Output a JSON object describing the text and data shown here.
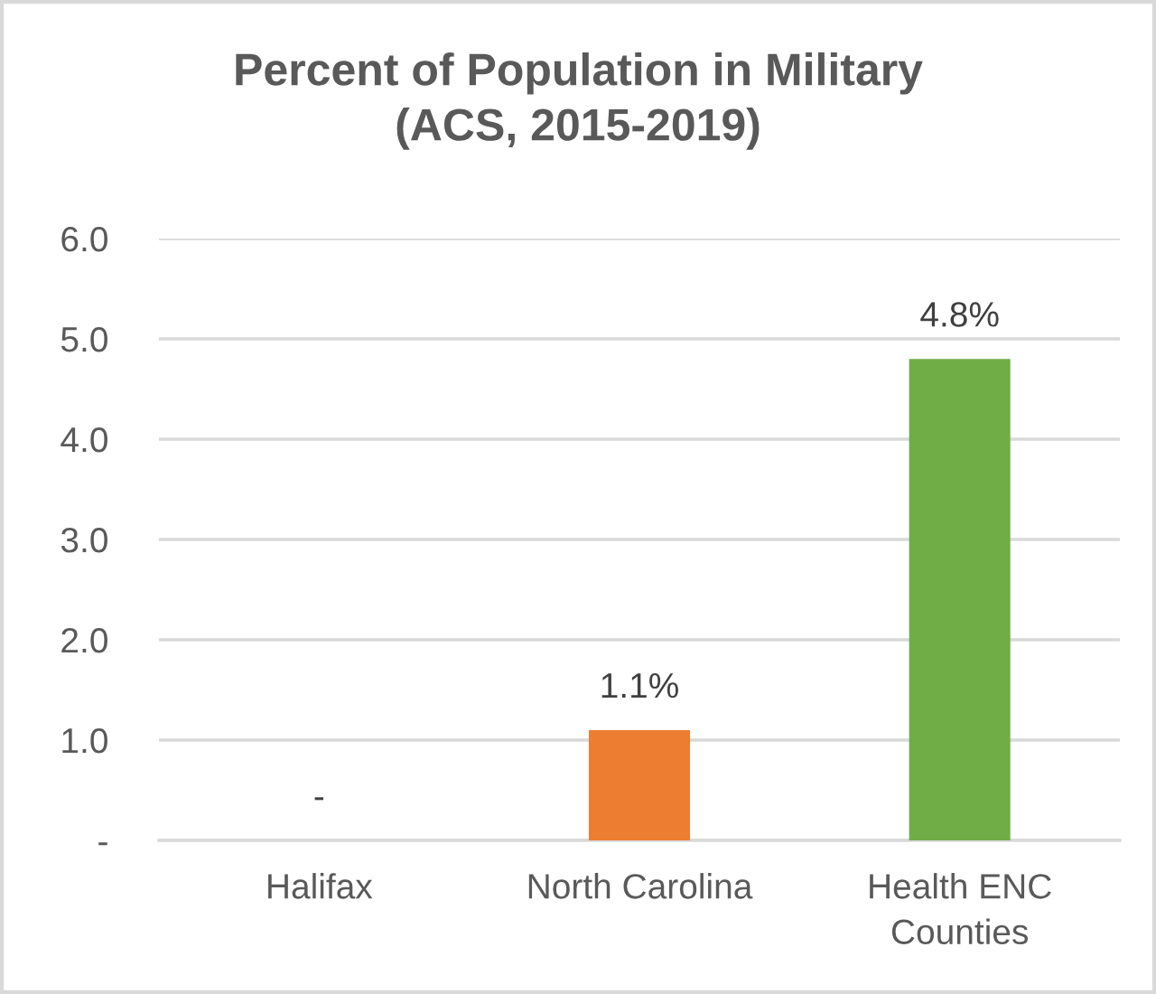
{
  "chart_data": {
    "type": "bar",
    "title": "Percent of Population in Military\n(ACS, 2015-2019)",
    "categories": [
      "Halifax",
      "North Carolina",
      "Health ENC\nCounties"
    ],
    "values": [
      0,
      1.1,
      4.8
    ],
    "colors": [
      "#4472c4",
      "#ed7d31",
      "#70ad47"
    ],
    "value_labels": [
      "-",
      "1.1%",
      "4.8%"
    ],
    "ylim": [
      0,
      6
    ],
    "yticks": [
      {
        "value": 0,
        "label": "-"
      },
      {
        "value": 1,
        "label": "1.0"
      },
      {
        "value": 2,
        "label": "2.0"
      },
      {
        "value": 3,
        "label": "3.0"
      },
      {
        "value": 4,
        "label": "4.0"
      },
      {
        "value": 5,
        "label": "5.0"
      },
      {
        "value": 6,
        "label": "6.0"
      }
    ],
    "grid": "y"
  }
}
